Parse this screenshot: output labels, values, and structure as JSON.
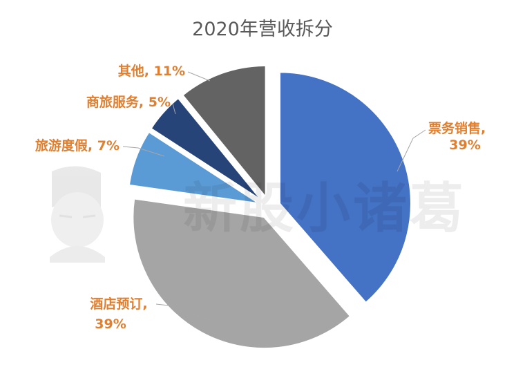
{
  "watermark": "新股小诸葛",
  "chart_data": {
    "type": "pie",
    "title": "2020年营收拆分",
    "exploded": true,
    "legend": "none",
    "label_color": "#e07f2f",
    "slices": [
      {
        "name": "票务销售",
        "value": 39,
        "label_line1": "票务销售,",
        "label_line2": "39%",
        "color": "#4472c4"
      },
      {
        "name": "酒店预订",
        "value": 39,
        "label_line1": "酒店预订,",
        "label_line2": "39%",
        "color": "#a5a5a5"
      },
      {
        "name": "旅游度假",
        "value": 7,
        "label_line1": "旅游度假, 7%",
        "label_line2": "",
        "color": "#5b9bd5"
      },
      {
        "name": "商旅服务",
        "value": 5,
        "label_line1": "商旅服务, 5%",
        "label_line2": "",
        "color": "#264478"
      },
      {
        "name": "其他",
        "value": 11,
        "label_line1": "其他, 11%",
        "label_line2": "",
        "color": "#636363"
      }
    ]
  }
}
